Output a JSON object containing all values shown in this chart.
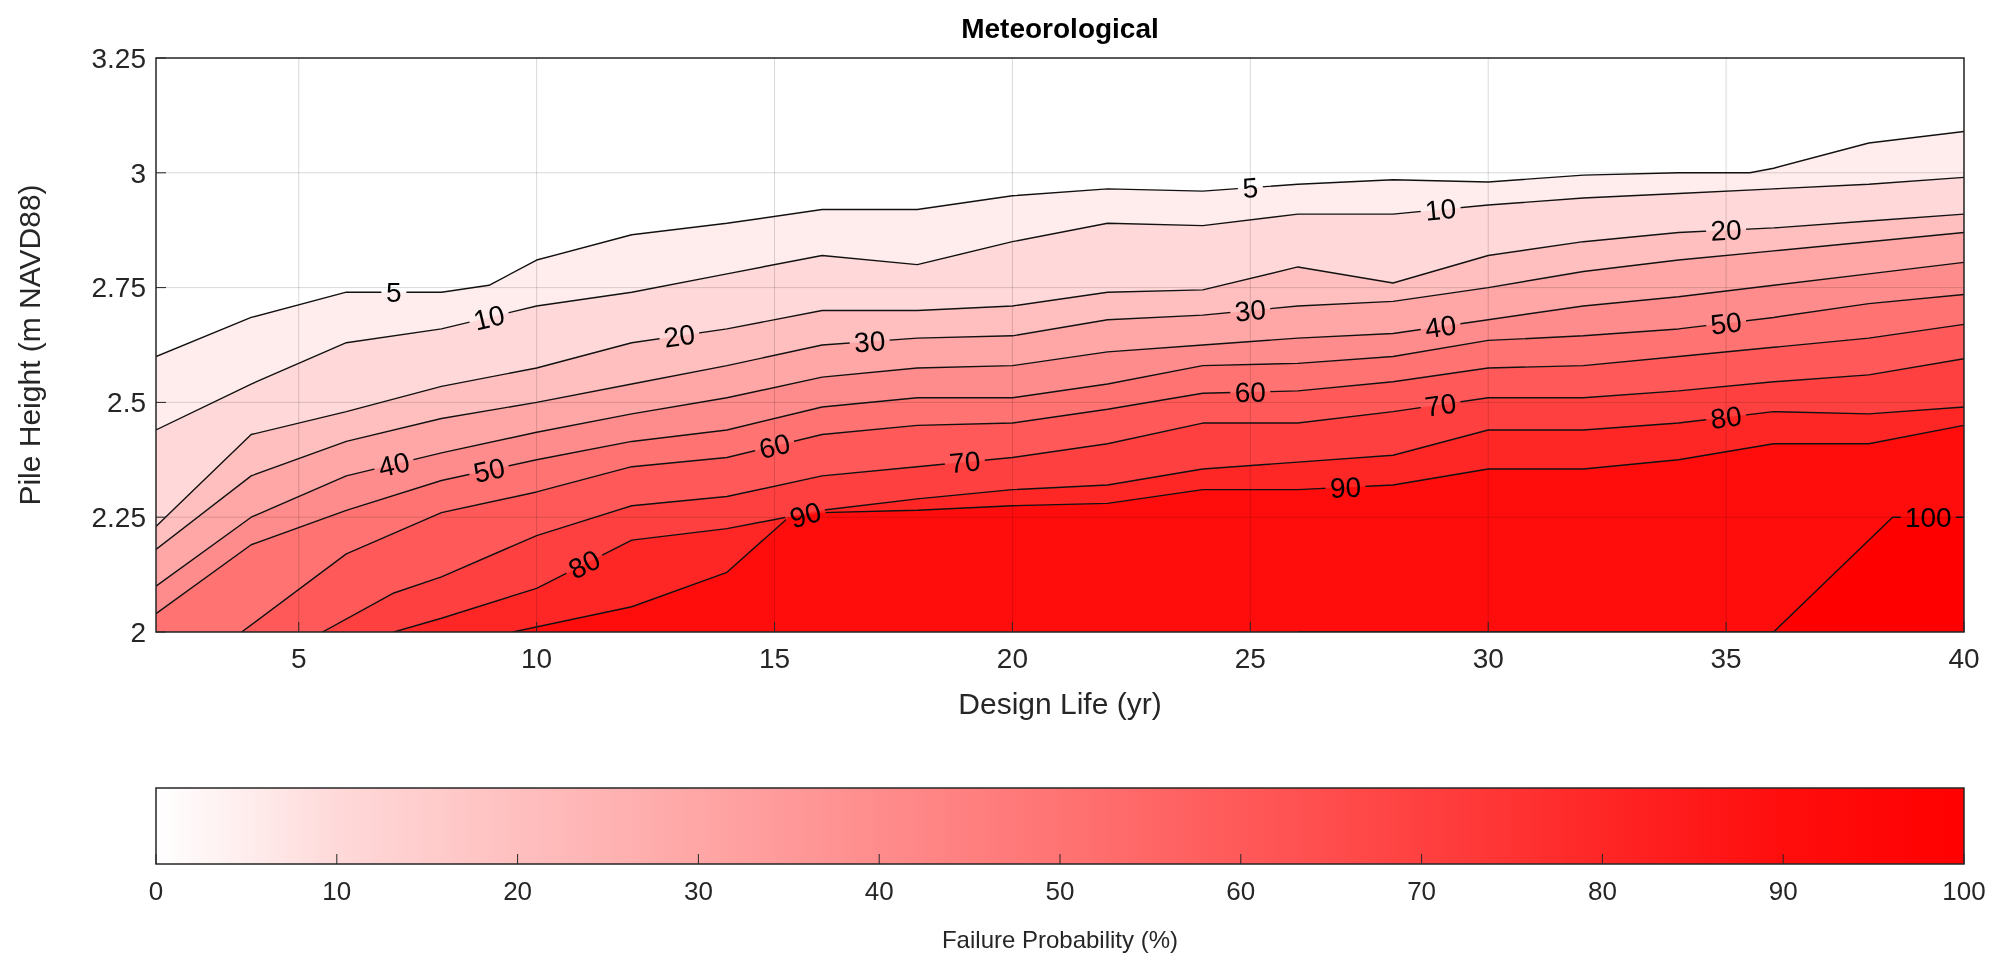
{
  "chart_data": {
    "type": "area",
    "title": "Meteorological",
    "xlabel": "Design Life (yr)",
    "ylabel": "Pile Height (m NAVD88)",
    "clabel": "Failure Probability (%)",
    "xlim": [
      2,
      40
    ],
    "xticks": [
      5,
      10,
      15,
      20,
      25,
      30,
      35,
      40
    ],
    "ylim": [
      2,
      3.25
    ],
    "yticks": [
      2,
      2.25,
      2.5,
      2.75,
      3,
      3.25
    ],
    "grid": true,
    "clim": [
      0,
      100
    ],
    "cticks": [
      0,
      10,
      20,
      30,
      40,
      50,
      60,
      70,
      80,
      90,
      100
    ],
    "series": [
      {
        "name": "5",
        "color": "#ffeded",
        "x": [
          2,
          4,
          6,
          8,
          9,
          10,
          12,
          14,
          16,
          18,
          20,
          22,
          24,
          26,
          28,
          30,
          32,
          34,
          35.5,
          36,
          38,
          40
        ],
        "values": [
          2.6,
          2.685,
          2.74,
          2.74,
          2.755,
          2.81,
          2.865,
          2.89,
          2.92,
          2.92,
          2.95,
          2.965,
          2.96,
          2.975,
          2.985,
          2.98,
          2.995,
          3.0,
          3.0,
          3.01,
          3.065,
          3.09
        ]
      },
      {
        "name": "10",
        "color": "#ffd9d9",
        "x": [
          2,
          4,
          6,
          8,
          10,
          12,
          14,
          16,
          18,
          20,
          22,
          24,
          26,
          28,
          30,
          32,
          34,
          36,
          38,
          40
        ],
        "values": [
          2.44,
          2.54,
          2.63,
          2.66,
          2.71,
          2.74,
          2.78,
          2.82,
          2.8,
          2.85,
          2.89,
          2.885,
          2.91,
          2.91,
          2.93,
          2.945,
          2.955,
          2.965,
          2.975,
          2.99
        ]
      },
      {
        "name": "20",
        "color": "#ffbfbf",
        "x": [
          2,
          4,
          6,
          8,
          10,
          12,
          14,
          16,
          18,
          20,
          22,
          24,
          26,
          28,
          30,
          32,
          34,
          36,
          38,
          40
        ],
        "values": [
          2.23,
          2.43,
          2.48,
          2.535,
          2.575,
          2.63,
          2.66,
          2.7,
          2.7,
          2.71,
          2.74,
          2.745,
          2.795,
          2.76,
          2.82,
          2.85,
          2.87,
          2.88,
          2.895,
          2.91
        ]
      },
      {
        "name": "30",
        "color": "#ffa6a6",
        "x": [
          2,
          4,
          6,
          8,
          10,
          12,
          14,
          16,
          18,
          20,
          22,
          24,
          26,
          28,
          30,
          32,
          34,
          36,
          38,
          40
        ],
        "values": [
          2.18,
          2.34,
          2.415,
          2.465,
          2.5,
          2.54,
          2.58,
          2.625,
          2.64,
          2.645,
          2.68,
          2.69,
          2.71,
          2.72,
          2.75,
          2.785,
          2.81,
          2.83,
          2.85,
          2.87
        ]
      },
      {
        "name": "40",
        "color": "#ff8c8c",
        "x": [
          2,
          4,
          6,
          8,
          10,
          12,
          14,
          16,
          18,
          20,
          22,
          24,
          26,
          28,
          30,
          32,
          34,
          36,
          38,
          40
        ],
        "values": [
          2.1,
          2.25,
          2.34,
          2.39,
          2.435,
          2.475,
          2.51,
          2.555,
          2.575,
          2.58,
          2.61,
          2.625,
          2.64,
          2.65,
          2.68,
          2.71,
          2.73,
          2.755,
          2.78,
          2.805
        ]
      },
      {
        "name": "50",
        "color": "#ff7373",
        "x": [
          2,
          4,
          6,
          8,
          10,
          12,
          14,
          16,
          18,
          20,
          22,
          24,
          26,
          28,
          30,
          32,
          34,
          36,
          38,
          40
        ],
        "values": [
          2.04,
          2.19,
          2.265,
          2.33,
          2.375,
          2.415,
          2.44,
          2.49,
          2.51,
          2.51,
          2.54,
          2.58,
          2.585,
          2.6,
          2.635,
          2.645,
          2.66,
          2.685,
          2.715,
          2.735
        ]
      },
      {
        "name": "60",
        "color": "#ff5959",
        "x": [
          3.8,
          6,
          8,
          10,
          12,
          14,
          16,
          18,
          20,
          22,
          24,
          26,
          28,
          30,
          32,
          34,
          36,
          38,
          40
        ],
        "values": [
          2.0,
          2.17,
          2.26,
          2.305,
          2.36,
          2.38,
          2.43,
          2.45,
          2.455,
          2.485,
          2.52,
          2.525,
          2.545,
          2.575,
          2.58,
          2.6,
          2.62,
          2.64,
          2.67
        ]
      },
      {
        "name": "70",
        "color": "#ff4040",
        "x": [
          5.5,
          7,
          8,
          10,
          12,
          14,
          16,
          18,
          20,
          22,
          24,
          26,
          28,
          30,
          32,
          34,
          36,
          38,
          40
        ],
        "values": [
          2.0,
          2.085,
          2.12,
          2.21,
          2.275,
          2.295,
          2.34,
          2.36,
          2.38,
          2.41,
          2.455,
          2.455,
          2.48,
          2.51,
          2.51,
          2.525,
          2.545,
          2.56,
          2.595
        ]
      },
      {
        "name": "80",
        "color": "#ff2626",
        "x": [
          7,
          8,
          10,
          12,
          14,
          16,
          18,
          20,
          22,
          24,
          26,
          28,
          30,
          32,
          34,
          36,
          38,
          40
        ],
        "values": [
          2.0,
          2.03,
          2.095,
          2.2,
          2.225,
          2.265,
          2.29,
          2.31,
          2.32,
          2.355,
          2.37,
          2.385,
          2.44,
          2.44,
          2.455,
          2.48,
          2.475,
          2.49
        ]
      },
      {
        "name": "90",
        "color": "#ff0d0d",
        "x": [
          9.5,
          12,
          14,
          15.3,
          16,
          18,
          20,
          22,
          24,
          26,
          28,
          30,
          32,
          34,
          36,
          38,
          40
        ],
        "values": [
          2.0,
          2.055,
          2.13,
          2.25,
          2.26,
          2.265,
          2.275,
          2.28,
          2.31,
          2.31,
          2.32,
          2.355,
          2.355,
          2.375,
          2.41,
          2.41,
          2.45
        ]
      },
      {
        "name": "100",
        "color": "#ff0000",
        "x": [
          26,
          36,
          38.5,
          40
        ],
        "values": [
          2.0,
          2.0,
          2.25,
          2.25
        ]
      }
    ]
  }
}
